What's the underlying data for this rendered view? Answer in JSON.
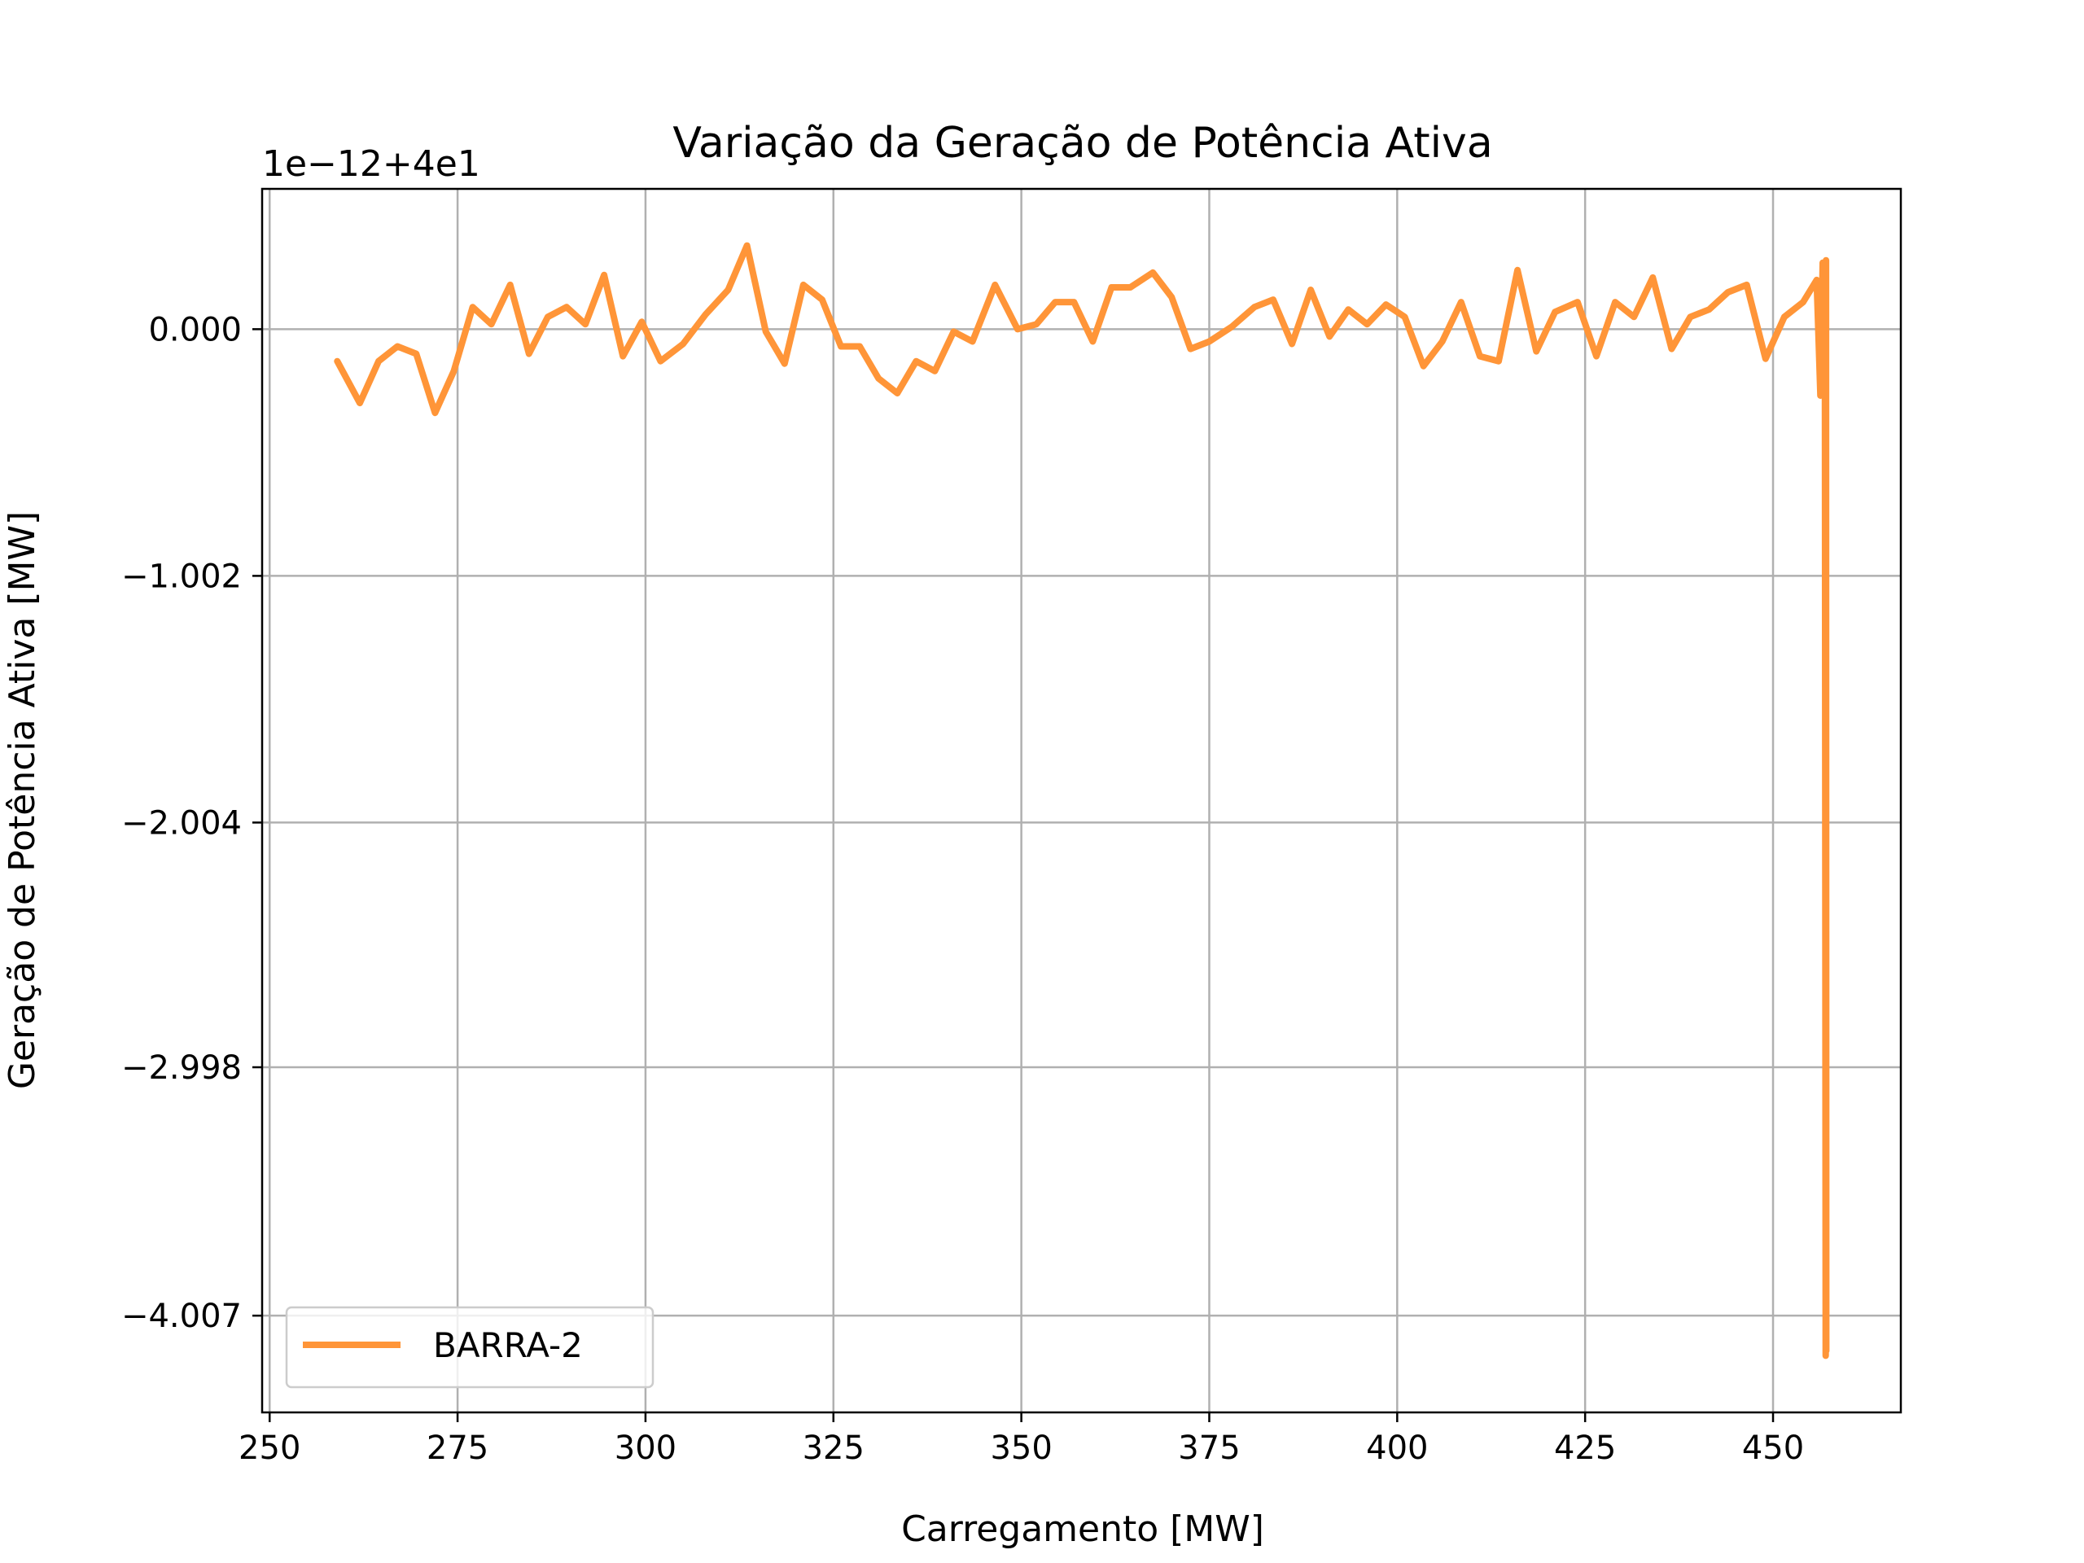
{
  "chart_data": {
    "type": "line",
    "title": "Variação da Geração de Potência Ativa",
    "xlabel": "Carregamento [MW]",
    "ylabel": "Geração de Potência Ativa [MW]",
    "y_offset_label": "1e−12+4e1",
    "xlim": [
      249,
      467
    ],
    "ylim": [
      -4.4,
      0.57
    ],
    "x_ticks": [
      {
        "value": 250,
        "label": "250"
      },
      {
        "value": 275,
        "label": "275"
      },
      {
        "value": 300,
        "label": "300"
      },
      {
        "value": 325,
        "label": "325"
      },
      {
        "value": 350,
        "label": "350"
      },
      {
        "value": 375,
        "label": "375"
      },
      {
        "value": 400,
        "label": "400"
      },
      {
        "value": 425,
        "label": "425"
      },
      {
        "value": 450,
        "label": "450"
      }
    ],
    "y_ticks": [
      {
        "value": 0,
        "label": "0.000"
      },
      {
        "value": -1.002,
        "label": "−1.002"
      },
      {
        "value": -2.004,
        "label": "−2.004"
      },
      {
        "value": -2.998,
        "label": "−2.998"
      },
      {
        "value": -4.007,
        "label": "−4.007"
      }
    ],
    "grid": true,
    "legend_position": "lower-left",
    "series": [
      {
        "name": "BARRA-2",
        "color": "#ff9538",
        "points": [
          [
            259,
            -0.13
          ],
          [
            262,
            -0.3
          ],
          [
            264.5,
            -0.13
          ],
          [
            267,
            -0.07
          ],
          [
            269.5,
            -0.1
          ],
          [
            272,
            -0.34
          ],
          [
            274.5,
            -0.17
          ],
          [
            277,
            0.09
          ],
          [
            279.5,
            0.02
          ],
          [
            282,
            0.18
          ],
          [
            284.5,
            -0.1
          ],
          [
            287,
            0.05
          ],
          [
            289.5,
            0.09
          ],
          [
            292,
            0.02
          ],
          [
            294.5,
            0.22
          ],
          [
            297,
            -0.11
          ],
          [
            299.5,
            0.03
          ],
          [
            302,
            -0.13
          ],
          [
            305,
            -0.06
          ],
          [
            308,
            0.06
          ],
          [
            311,
            0.16
          ],
          [
            313.5,
            0.34
          ],
          [
            316,
            -0.01
          ],
          [
            318.5,
            -0.14
          ],
          [
            321,
            0.18
          ],
          [
            323.5,
            0.12
          ],
          [
            326,
            -0.07
          ],
          [
            328.5,
            -0.07
          ],
          [
            331,
            -0.2
          ],
          [
            333.5,
            -0.26
          ],
          [
            336,
            -0.13
          ],
          [
            338.5,
            -0.17
          ],
          [
            341,
            -0.01
          ],
          [
            343.5,
            -0.05
          ],
          [
            346.5,
            0.18
          ],
          [
            349.5,
            0.0
          ],
          [
            352,
            0.02
          ],
          [
            354.5,
            0.11
          ],
          [
            357,
            0.11
          ],
          [
            359.5,
            -0.05
          ],
          [
            362,
            0.17
          ],
          [
            364.5,
            0.17
          ],
          [
            367.5,
            0.23
          ],
          [
            370,
            0.13
          ],
          [
            372.5,
            -0.08
          ],
          [
            375,
            -0.05
          ],
          [
            378,
            0.01
          ],
          [
            381,
            0.09
          ],
          [
            383.5,
            0.12
          ],
          [
            386,
            -0.06
          ],
          [
            388.5,
            0.16
          ],
          [
            391,
            -0.03
          ],
          [
            393.5,
            0.08
          ],
          [
            396,
            0.02
          ],
          [
            398.5,
            0.1
          ],
          [
            401,
            0.05
          ],
          [
            403.5,
            -0.15
          ],
          [
            406,
            -0.05
          ],
          [
            408.5,
            0.11
          ],
          [
            411,
            -0.11
          ],
          [
            413.5,
            -0.13
          ],
          [
            416,
            0.24
          ],
          [
            418.5,
            -0.09
          ],
          [
            421,
            0.07
          ],
          [
            424,
            0.11
          ],
          [
            426.5,
            -0.11
          ],
          [
            429,
            0.11
          ],
          [
            431.5,
            0.05
          ],
          [
            434,
            0.21
          ],
          [
            436.5,
            -0.08
          ],
          [
            439,
            0.05
          ],
          [
            441.5,
            0.08
          ],
          [
            444,
            0.15
          ],
          [
            446.5,
            0.18
          ],
          [
            449,
            -0.12
          ],
          [
            451.5,
            0.05
          ],
          [
            454,
            0.11
          ],
          [
            455.8,
            0.2
          ],
          [
            456.3,
            -0.27
          ],
          [
            456.6,
            0.27
          ],
          [
            456.8,
            -0.22
          ],
          [
            456.9,
            0.08
          ],
          [
            457,
            -4.17
          ],
          [
            457.05,
            0.28
          ],
          [
            457.08,
            -4.15
          ]
        ]
      }
    ]
  }
}
